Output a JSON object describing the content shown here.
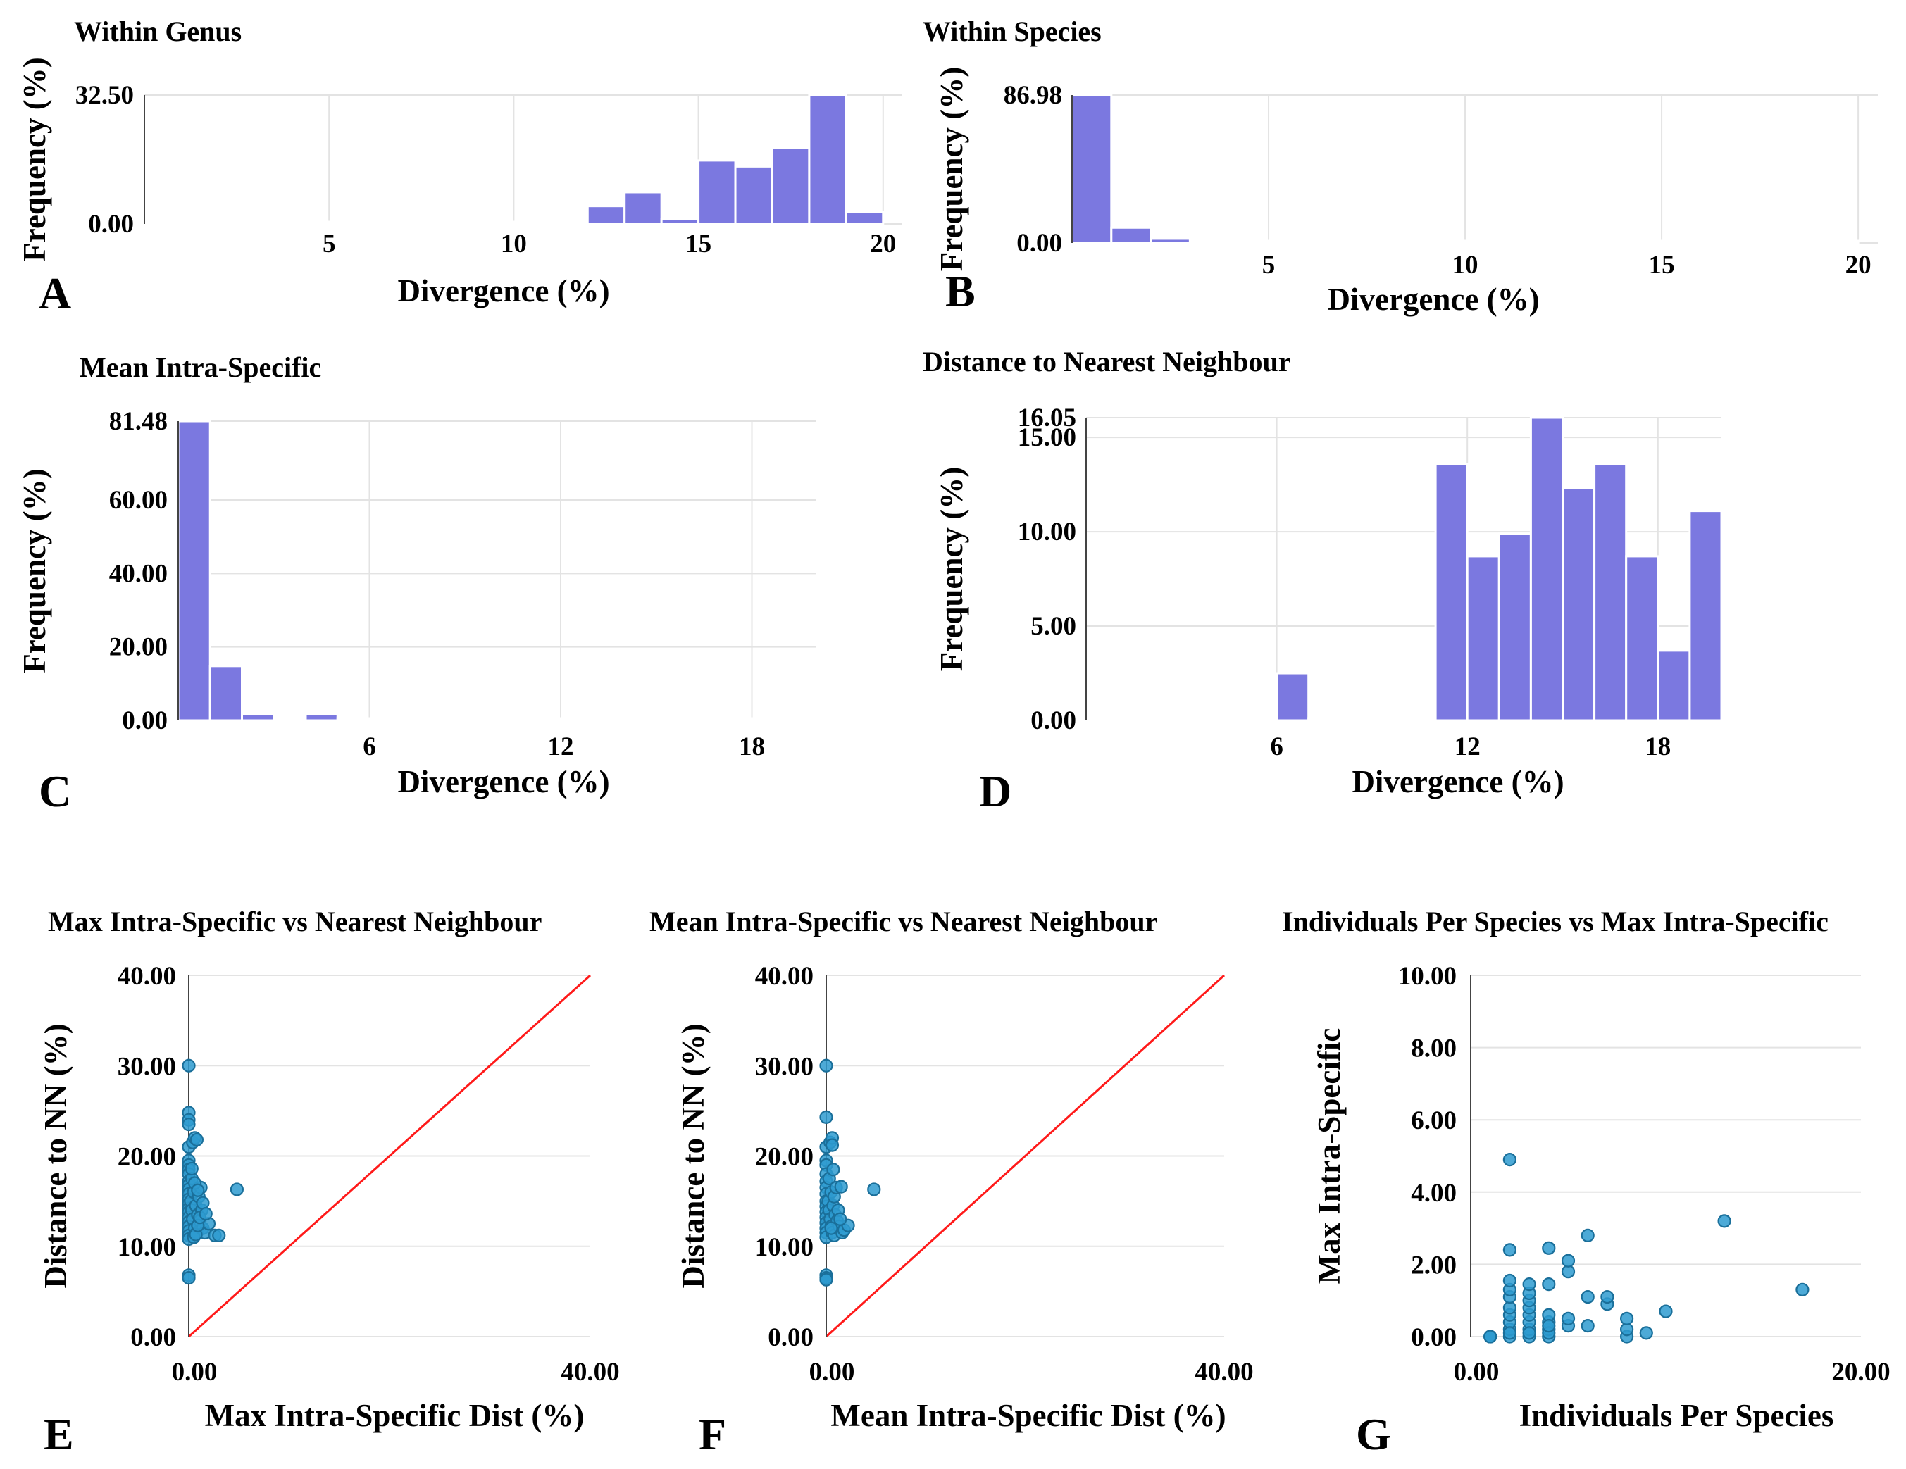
{
  "chart_data": [
    {
      "id": "A",
      "type": "bar",
      "panel_label": "A",
      "title": "Within Genus",
      "xlabel": "Divergence (%)",
      "ylabel": "Frequency (%)",
      "xlim": [
        0,
        20.5
      ],
      "ylim": [
        0,
        32.5
      ],
      "xticks": [
        5,
        10,
        15,
        20
      ],
      "yticks": [
        0,
        32.5
      ],
      "ytick_labels": [
        "0.00",
        "32.50"
      ],
      "bin_width": 1,
      "values": [
        0.2,
        0.2,
        0.2,
        0.2,
        0.2,
        0.2,
        0.2,
        0.2,
        0.2,
        0.2,
        0.2,
        0.6,
        4.5,
        8.0,
        1.3,
        16.0,
        14.5,
        19.2,
        32.5,
        3.0
      ]
    },
    {
      "id": "B",
      "type": "bar",
      "panel_label": "B",
      "title": "Within Species",
      "xlabel": "Divergence (%)",
      "ylabel": "Frequency (%)",
      "xlim": [
        0,
        20.5
      ],
      "ylim": [
        0,
        86.98
      ],
      "xticks": [
        5,
        10,
        15,
        20
      ],
      "yticks": [
        0,
        86.98
      ],
      "ytick_labels": [
        "0.00",
        "86.98"
      ],
      "bin_width": 1,
      "values": [
        86.98,
        9.0,
        2.5,
        0.5,
        0.5,
        0.5,
        0.5,
        0.5,
        0.5,
        0.5,
        0.5,
        0.5,
        0.5,
        0.5,
        0.5,
        0.5,
        0.5,
        0.5,
        0.5,
        0.5
      ]
    },
    {
      "id": "C",
      "type": "bar",
      "panel_label": "C",
      "title": "Mean Intra-Specific",
      "xlabel": "Divergence (%)",
      "ylabel": "Frequency (%)",
      "xlim": [
        0,
        20
      ],
      "ylim": [
        0,
        81.48
      ],
      "xticks": [
        6,
        12,
        18
      ],
      "yticks": [
        0,
        20,
        40,
        60,
        81.48
      ],
      "ytick_labels": [
        "0.00",
        "20.00",
        "40.00",
        "60.00",
        "81.48"
      ],
      "bin_width": 1,
      "values": [
        81.48,
        14.8,
        1.8,
        0.4,
        1.8,
        0.3,
        0.3,
        0.3,
        0.3,
        0.3,
        0.3,
        0.3,
        0.3,
        0.3,
        0.3,
        0.3,
        0.3,
        0.3,
        0.3,
        0.3
      ]
    },
    {
      "id": "D",
      "type": "bar",
      "panel_label": "D",
      "title": "Distance to Nearest Neighbour",
      "xlabel": "Divergence (%)",
      "ylabel": "Frequency (%)",
      "xlim": [
        0,
        20
      ],
      "ylim": [
        0,
        16.05
      ],
      "xticks": [
        6,
        12,
        18
      ],
      "yticks": [
        0,
        5,
        10,
        15,
        16.05
      ],
      "ytick_labels": [
        "0.00",
        "5.00",
        "10.00",
        "15.00",
        "16.05"
      ],
      "bin_width": 1,
      "values": [
        0.1,
        0.1,
        0.1,
        0.1,
        0.1,
        0.1,
        2.5,
        0.1,
        0.1,
        0.1,
        0.1,
        13.6,
        8.7,
        9.9,
        16.05,
        12.3,
        13.6,
        8.7,
        3.7,
        11.1
      ]
    },
    {
      "id": "E",
      "type": "scatter",
      "panel_label": "E",
      "title": "Max Intra-Specific vs Nearest Neighbour",
      "xlabel": "Max Intra-Specific Dist (%)",
      "ylabel": "Distance to NN (%)",
      "xlim": [
        0,
        40
      ],
      "ylim": [
        0,
        40
      ],
      "xticks": [
        0,
        40
      ],
      "yticks": [
        0,
        10,
        20,
        30,
        40
      ],
      "xtick_labels": [
        "0.00",
        "40.00"
      ],
      "ytick_labels": [
        "0.00",
        "10.00",
        "20.00",
        "30.00",
        "40.00"
      ],
      "reference_line": "y = x",
      "x": [
        0,
        0,
        0,
        0,
        0,
        0,
        0,
        0,
        0,
        0,
        0,
        0,
        0,
        0,
        0,
        0,
        0,
        0,
        0,
        0,
        0,
        0,
        0,
        0,
        0,
        0.2,
        0.3,
        0.4,
        0.6,
        0.8,
        0.3,
        0.5,
        0.7,
        0.9,
        1.1,
        1.4,
        1.6,
        2.0,
        2.6,
        3.0,
        0.4,
        0.6,
        0.8,
        1.0,
        1.2,
        1.3,
        0.5,
        0.7,
        0.9,
        1.1,
        1.4,
        1.7,
        4.8,
        0.6,
        0.9,
        0.3
      ],
      "y": [
        30,
        24.8,
        24.0,
        23.5,
        21.0,
        19.5,
        19.0,
        18.5,
        18.0,
        17.2,
        16.8,
        16.3,
        15.8,
        15.2,
        14.7,
        14.2,
        13.8,
        13.2,
        12.7,
        12.2,
        11.7,
        11.2,
        10.8,
        6.8,
        6.5,
        15.0,
        14.0,
        13.0,
        12.0,
        11.5,
        17.5,
        16.0,
        14.5,
        13.5,
        12.8,
        12.0,
        11.5,
        12.5,
        11.2,
        11.2,
        21.5,
        22.0,
        21.8,
        15.5,
        16.5,
        14.0,
        11.0,
        11.3,
        12.3,
        13.2,
        14.8,
        13.6,
        16.3,
        17.0,
        16.2,
        18.6
      ]
    },
    {
      "id": "F",
      "type": "scatter",
      "panel_label": "F",
      "title": "Mean Intra-Specific vs Nearest Neighbour",
      "xlabel": "Mean Intra-Specific Dist (%)",
      "ylabel": "Distance to NN (%)",
      "xlim": [
        0,
        40
      ],
      "ylim": [
        0,
        40
      ],
      "xticks": [
        0,
        40
      ],
      "yticks": [
        0,
        10,
        20,
        30,
        40
      ],
      "xtick_labels": [
        "0.00",
        "40.00"
      ],
      "ytick_labels": [
        "0.00",
        "10.00",
        "20.00",
        "30.00",
        "40.00"
      ],
      "reference_line": "y = x",
      "x": [
        0,
        0,
        0,
        0,
        0,
        0,
        0,
        0,
        0,
        0,
        0,
        0,
        0,
        0,
        0,
        0,
        0,
        0,
        0,
        0,
        0.2,
        0.3,
        0.4,
        0.5,
        0.6,
        0.8,
        0.3,
        0.5,
        0.7,
        0.9,
        1.1,
        1.3,
        1.6,
        1.8,
        2.2,
        0.4,
        0.6,
        0.8,
        1.0,
        1.2,
        1.4,
        0.5,
        4.8,
        1.5,
        0.7,
        0.6
      ],
      "y": [
        30,
        24.3,
        21.0,
        19.5,
        19.0,
        18.0,
        17.2,
        16.5,
        15.8,
        15.0,
        14.4,
        13.8,
        13.2,
        12.6,
        12.0,
        11.5,
        11.0,
        6.8,
        6.5,
        6.3,
        15.0,
        14.0,
        13.0,
        12.2,
        11.5,
        11.2,
        17.5,
        16.0,
        14.5,
        13.5,
        12.8,
        12.2,
        11.5,
        11.8,
        12.3,
        21.5,
        22.0,
        15.5,
        16.5,
        14.0,
        13.0,
        12.0,
        16.3,
        16.6,
        18.5,
        21.2
      ]
    },
    {
      "id": "G",
      "type": "scatter",
      "panel_label": "G",
      "title": "Individuals Per Species vs Max Intra-Specific",
      "xlabel": "Individuals Per Species",
      "ylabel": "Max Intra-Specific",
      "xlim": [
        0,
        20
      ],
      "ylim": [
        0,
        10
      ],
      "xticks": [
        0,
        20
      ],
      "yticks": [
        0,
        2,
        4,
        6,
        8,
        10
      ],
      "xtick_labels": [
        "0.00",
        "20.00"
      ],
      "ytick_labels": [
        "0.00",
        "2.00",
        "4.00",
        "6.00",
        "8.00",
        "10.00"
      ],
      "x": [
        1,
        1,
        1,
        2,
        2,
        2,
        2,
        2,
        2,
        2,
        2,
        2,
        2,
        2,
        3,
        3,
        3,
        3,
        3,
        3,
        3,
        3,
        3,
        4,
        4,
        4,
        4,
        4,
        4,
        4,
        4,
        5,
        5,
        5,
        5,
        6,
        6,
        6,
        7,
        7,
        8,
        8,
        8,
        9,
        10,
        13,
        17
      ],
      "y": [
        0,
        0,
        0,
        0,
        0.2,
        0.4,
        0.6,
        0.8,
        1.1,
        1.3,
        1.55,
        2.4,
        4.9,
        0.1,
        0,
        0.2,
        0.4,
        0.6,
        0.8,
        1.0,
        1.2,
        1.45,
        0.1,
        0,
        0.2,
        0.4,
        0.6,
        1.45,
        2.45,
        0.1,
        0.3,
        0.3,
        0.5,
        1.8,
        2.1,
        0.3,
        1.1,
        2.8,
        0.9,
        1.1,
        0,
        0.2,
        0.5,
        0.1,
        0.7,
        3.2,
        1.3
      ]
    }
  ]
}
